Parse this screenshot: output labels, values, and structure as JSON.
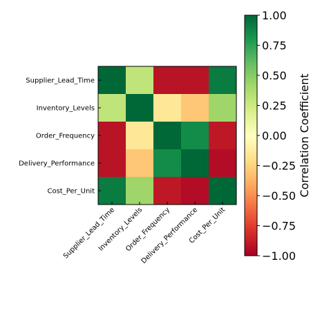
{
  "chart_data": {
    "type": "heatmap",
    "rows": [
      "Supplier_Lead_Time",
      "Inventory_Levels",
      "Order_Frequency",
      "Delivery_Performance",
      "Cost_Per_Unit"
    ],
    "columns": [
      "Supplier_Lead_Time",
      "Inventory_Levels",
      "Order_Frequency",
      "Delivery_Performance",
      "Cost_Per_Unit"
    ],
    "values": [
      [
        1.0,
        0.3,
        -0.92,
        -0.92,
        0.92
      ],
      [
        0.3,
        1.0,
        -0.15,
        -0.3,
        0.42
      ],
      [
        -0.92,
        -0.15,
        1.0,
        0.85,
        -0.9
      ],
      [
        -0.92,
        -0.3,
        0.85,
        1.0,
        -0.95
      ],
      [
        0.92,
        0.42,
        -0.9,
        -0.95,
        1.0
      ]
    ],
    "colormap": "RdYlGn",
    "vmin": -1.0,
    "vmax": 1.0,
    "colorbar": {
      "label": "Correlation Coefficient",
      "ticks": [
        1.0,
        0.75,
        0.5,
        0.25,
        0.0,
        -0.25,
        -0.5,
        -0.75,
        -1.0
      ],
      "tick_labels": [
        "1.00",
        "0.75",
        "0.50",
        "0.25",
        "0.00",
        "−0.25",
        "−0.50",
        "−0.75",
        "−1.00"
      ]
    },
    "colors": {
      "low": "#a50026",
      "mid": "#ffffbf",
      "high": "#006837"
    }
  }
}
